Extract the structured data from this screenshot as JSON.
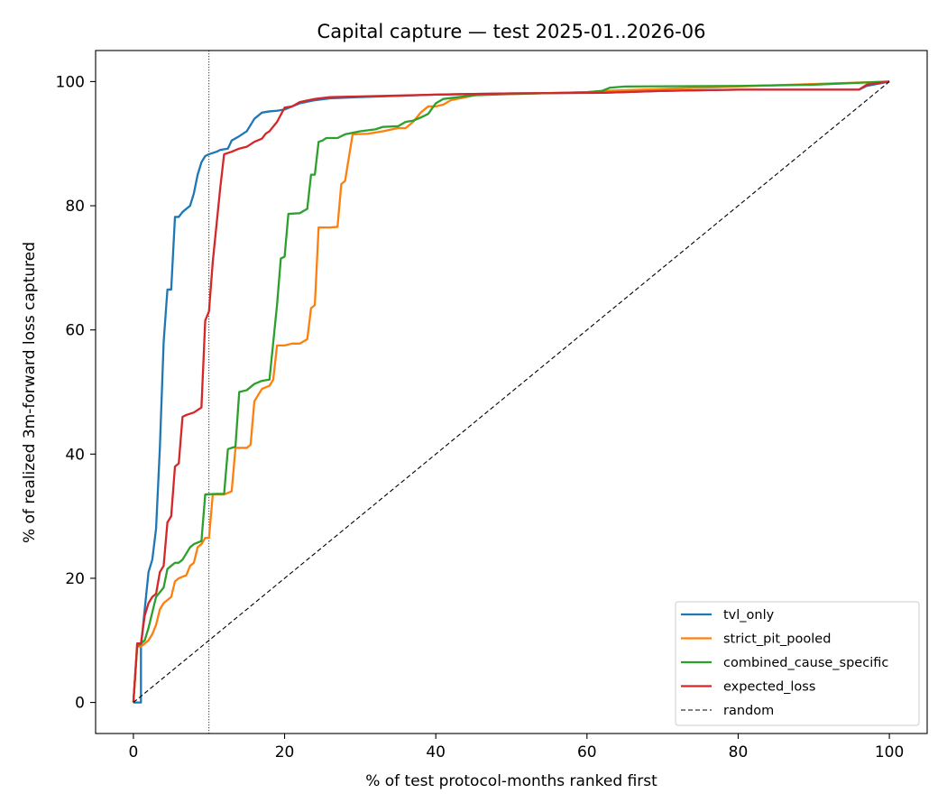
{
  "chart_data": {
    "type": "line",
    "title": "Capital capture — test 2025-01..2026-06",
    "xlabel": "% of test protocol-months ranked first",
    "ylabel": "% of realized 3m-forward loss captured",
    "xlim": [
      -5,
      105
    ],
    "ylim": [
      -5,
      105
    ],
    "xticks": [
      "0",
      "20",
      "40",
      "60",
      "80",
      "100"
    ],
    "yticks": [
      "0",
      "20",
      "40",
      "60",
      "80",
      "100"
    ],
    "grid": false,
    "legend_position": "lower-right",
    "reference_vline": 10,
    "series": [
      {
        "name": "tvl_only",
        "color": "#1f77b4",
        "style": "solid",
        "points": [
          [
            0,
            0
          ],
          [
            1,
            0
          ],
          [
            1,
            9
          ],
          [
            2,
            21
          ],
          [
            2.5,
            23
          ],
          [
            3,
            28
          ],
          [
            3.5,
            41
          ],
          [
            4,
            58
          ],
          [
            4.5,
            66.5
          ],
          [
            5,
            66.5
          ],
          [
            5.5,
            78.2
          ],
          [
            6,
            78.2
          ],
          [
            6.5,
            79
          ],
          [
            7,
            79.5
          ],
          [
            7.5,
            80
          ],
          [
            8,
            82
          ],
          [
            8.5,
            85
          ],
          [
            9,
            87
          ],
          [
            9.5,
            88
          ],
          [
            10,
            88.3
          ],
          [
            11,
            88.7
          ],
          [
            11.5,
            89
          ],
          [
            12.5,
            89.2
          ],
          [
            13,
            90.5
          ],
          [
            14,
            91.2
          ],
          [
            15,
            92
          ],
          [
            15.5,
            93
          ],
          [
            16,
            94
          ],
          [
            17,
            95
          ],
          [
            18,
            95.2
          ],
          [
            19,
            95.3
          ],
          [
            20,
            95.5
          ],
          [
            21,
            96
          ],
          [
            22,
            96.5
          ],
          [
            24,
            97
          ],
          [
            26,
            97.3
          ],
          [
            30,
            97.5
          ],
          [
            40,
            97.9
          ],
          [
            50,
            98.1
          ],
          [
            62,
            98.2
          ],
          [
            70,
            98.5
          ],
          [
            80,
            98.7
          ],
          [
            96,
            98.7
          ],
          [
            97,
            99.3
          ],
          [
            100,
            100
          ]
        ]
      },
      {
        "name": "strict_pit_pooled",
        "color": "#ff7f0e",
        "style": "solid",
        "points": [
          [
            0,
            0
          ],
          [
            0.5,
            9
          ],
          [
            1,
            9
          ],
          [
            1.5,
            9.5
          ],
          [
            2,
            10
          ],
          [
            2.5,
            11
          ],
          [
            3,
            12.5
          ],
          [
            3.5,
            15
          ],
          [
            4,
            16
          ],
          [
            5,
            17
          ],
          [
            5.5,
            19.5
          ],
          [
            6,
            20
          ],
          [
            7,
            20.5
          ],
          [
            7.5,
            22
          ],
          [
            8,
            22.5
          ],
          [
            8.5,
            25
          ],
          [
            9,
            25.5
          ],
          [
            9.5,
            26.5
          ],
          [
            10,
            26.5
          ],
          [
            10.5,
            33.5
          ],
          [
            12,
            33.5
          ],
          [
            13,
            34
          ],
          [
            13.5,
            41
          ],
          [
            15,
            41
          ],
          [
            15.5,
            41.5
          ],
          [
            16,
            48.5
          ],
          [
            17,
            50.5
          ],
          [
            18,
            51
          ],
          [
            18.5,
            52
          ],
          [
            19,
            57.5
          ],
          [
            20,
            57.5
          ],
          [
            21,
            57.8
          ],
          [
            22,
            57.8
          ],
          [
            23,
            58.5
          ],
          [
            23.5,
            63.5
          ],
          [
            24,
            64
          ],
          [
            24.5,
            76.5
          ],
          [
            26,
            76.5
          ],
          [
            27,
            76.6
          ],
          [
            27.5,
            83.5
          ],
          [
            28,
            84
          ],
          [
            29,
            91.5
          ],
          [
            31,
            91.6
          ],
          [
            33,
            92
          ],
          [
            35,
            92.5
          ],
          [
            36,
            92.5
          ],
          [
            37,
            93.5
          ],
          [
            38,
            95
          ],
          [
            39,
            96
          ],
          [
            40,
            96
          ],
          [
            41,
            96.3
          ],
          [
            42,
            97
          ],
          [
            44,
            97.5
          ],
          [
            46,
            98
          ],
          [
            50,
            98
          ],
          [
            60,
            98.3
          ],
          [
            62,
            98.5
          ],
          [
            100,
            100
          ]
        ]
      },
      {
        "name": "combined_cause_specific",
        "color": "#2ca02c",
        "style": "solid",
        "points": [
          [
            0,
            0
          ],
          [
            0.5,
            9
          ],
          [
            1.5,
            10
          ],
          [
            2,
            12
          ],
          [
            3,
            17
          ],
          [
            4,
            18.5
          ],
          [
            4.5,
            21.5
          ],
          [
            5,
            22
          ],
          [
            5.5,
            22.5
          ],
          [
            6,
            22.5
          ],
          [
            6.5,
            23
          ],
          [
            7,
            24
          ],
          [
            7.5,
            25
          ],
          [
            8,
            25.5
          ],
          [
            9,
            26
          ],
          [
            9.5,
            33.5
          ],
          [
            11,
            33.6
          ],
          [
            12,
            33.6
          ],
          [
            12.5,
            40.8
          ],
          [
            13.5,
            41.2
          ],
          [
            14,
            50
          ],
          [
            15,
            50.3
          ],
          [
            16,
            51.3
          ],
          [
            17,
            51.8
          ],
          [
            18,
            52
          ],
          [
            18.5,
            58
          ],
          [
            19,
            64
          ],
          [
            19.5,
            71.5
          ],
          [
            20,
            71.8
          ],
          [
            20.5,
            78.7
          ],
          [
            22,
            78.8
          ],
          [
            23,
            79.5
          ],
          [
            23.5,
            85
          ],
          [
            24,
            85
          ],
          [
            24.5,
            90.3
          ],
          [
            25,
            90.5
          ],
          [
            25.5,
            90.9
          ],
          [
            27,
            90.9
          ],
          [
            28,
            91.5
          ],
          [
            30,
            92
          ],
          [
            32,
            92.3
          ],
          [
            33,
            92.7
          ],
          [
            35,
            92.8
          ],
          [
            36,
            93.5
          ],
          [
            37,
            93.7
          ],
          [
            38,
            94.2
          ],
          [
            39,
            94.8
          ],
          [
            40,
            96.5
          ],
          [
            41,
            97.2
          ],
          [
            43,
            97.5
          ],
          [
            45,
            97.8
          ],
          [
            50,
            98
          ],
          [
            60,
            98.3
          ],
          [
            62,
            98.5
          ],
          [
            63,
            99
          ],
          [
            65,
            99.2
          ],
          [
            80,
            99.3
          ],
          [
            90,
            99.5
          ],
          [
            100,
            100
          ]
        ]
      },
      {
        "name": "expected_loss",
        "color": "#d62728",
        "style": "solid",
        "points": [
          [
            0,
            0
          ],
          [
            0.5,
            9.5
          ],
          [
            1,
            9.5
          ],
          [
            1.5,
            14
          ],
          [
            2,
            16
          ],
          [
            2.5,
            17
          ],
          [
            3,
            17.5
          ],
          [
            3.5,
            21
          ],
          [
            4,
            22
          ],
          [
            4.5,
            29
          ],
          [
            5,
            30
          ],
          [
            5.5,
            38
          ],
          [
            6,
            38.5
          ],
          [
            6.5,
            46
          ],
          [
            7,
            46.3
          ],
          [
            8,
            46.7
          ],
          [
            9,
            47.5
          ],
          [
            9.5,
            61.5
          ],
          [
            10,
            63
          ],
          [
            10.5,
            71
          ],
          [
            11,
            77
          ],
          [
            11.5,
            83
          ],
          [
            12,
            88.3
          ],
          [
            13,
            88.7
          ],
          [
            14,
            89.2
          ],
          [
            15,
            89.5
          ],
          [
            16,
            90.3
          ],
          [
            17,
            90.8
          ],
          [
            17.5,
            91.6
          ],
          [
            18,
            92
          ],
          [
            19,
            93.5
          ],
          [
            20,
            95.8
          ],
          [
            21,
            96
          ],
          [
            22,
            96.7
          ],
          [
            24,
            97.2
          ],
          [
            26,
            97.5
          ],
          [
            30,
            97.6
          ],
          [
            40,
            97.9
          ],
          [
            50,
            98.1
          ],
          [
            62,
            98.2
          ],
          [
            70,
            98.5
          ],
          [
            80,
            98.7
          ],
          [
            96,
            98.7
          ],
          [
            97,
            99.5
          ],
          [
            100,
            100
          ]
        ]
      },
      {
        "name": "random",
        "color": "#000000",
        "style": "dashed",
        "points": [
          [
            0,
            0
          ],
          [
            100,
            100
          ]
        ]
      }
    ]
  }
}
